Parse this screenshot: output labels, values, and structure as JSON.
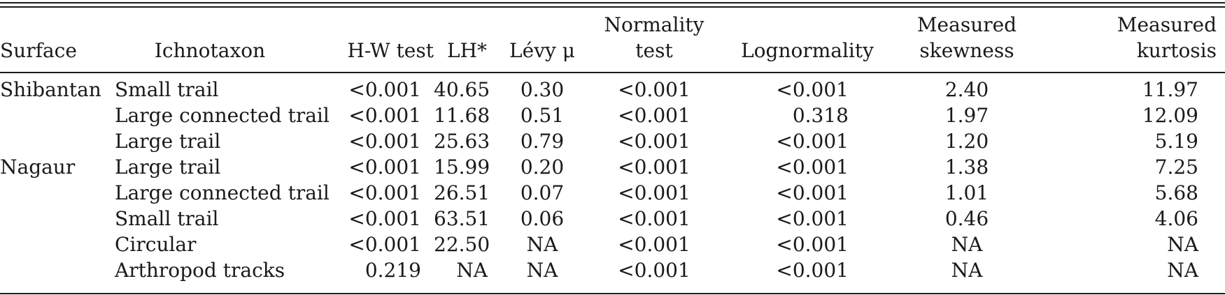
{
  "table": {
    "headers": {
      "surface": [
        "Surface"
      ],
      "ichnotaxon": [
        "Ichnotaxon"
      ],
      "hw_test": [
        "H-W test"
      ],
      "lh": [
        "LH*"
      ],
      "levy": [
        "Lévy μ"
      ],
      "normality": [
        "Normality",
        "test"
      ],
      "lognormality": [
        "Lognormality"
      ],
      "skewness": [
        "Measured",
        "skewness"
      ],
      "kurtosis": [
        "Measured",
        "kurtosis"
      ]
    },
    "rows": [
      {
        "surface": "Shibantan",
        "ichnotaxon": "Small trail",
        "hw_test": "<0.001",
        "lh": "40.65",
        "levy": "0.30",
        "normality": "<0.001",
        "lognormality": "<0.001",
        "skewness": "2.40",
        "kurtosis": "11.97"
      },
      {
        "surface": "",
        "ichnotaxon": "Large connected trail",
        "hw_test": "<0.001",
        "lh": "11.68",
        "levy": "0.51",
        "normality": "<0.001",
        "lognormality": "0.318",
        "skewness": "1.97",
        "kurtosis": "12.09"
      },
      {
        "surface": "",
        "ichnotaxon": "Large trail",
        "hw_test": "<0.001",
        "lh": "25.63",
        "levy": "0.79",
        "normality": "<0.001",
        "lognormality": "<0.001",
        "skewness": "1.20",
        "kurtosis": "5.19"
      },
      {
        "surface": "Nagaur",
        "ichnotaxon": "Large trail",
        "hw_test": "<0.001",
        "lh": "15.99",
        "levy": "0.20",
        "normality": "<0.001",
        "lognormality": "<0.001",
        "skewness": "1.38",
        "kurtosis": "7.25"
      },
      {
        "surface": "",
        "ichnotaxon": "Large connected trail",
        "hw_test": "<0.001",
        "lh": "26.51",
        "levy": "0.07",
        "normality": "<0.001",
        "lognormality": "<0.001",
        "skewness": "1.01",
        "kurtosis": "5.68"
      },
      {
        "surface": "",
        "ichnotaxon": "Small trail",
        "hw_test": "<0.001",
        "lh": "63.51",
        "levy": "0.06",
        "normality": "<0.001",
        "lognormality": "<0.001",
        "skewness": "0.46",
        "kurtosis": "4.06"
      },
      {
        "surface": "",
        "ichnotaxon": "Circular",
        "hw_test": "<0.001",
        "lh": "22.50",
        "levy": "NA",
        "normality": "<0.001",
        "lognormality": "<0.001",
        "skewness": "NA",
        "kurtosis": "NA"
      },
      {
        "surface": "",
        "ichnotaxon": "Arthropod tracks",
        "hw_test": "0.219",
        "lh": "NA",
        "levy": "NA",
        "normality": "<0.001",
        "lognormality": "<0.001",
        "skewness": "NA",
        "kurtosis": "NA"
      }
    ]
  }
}
